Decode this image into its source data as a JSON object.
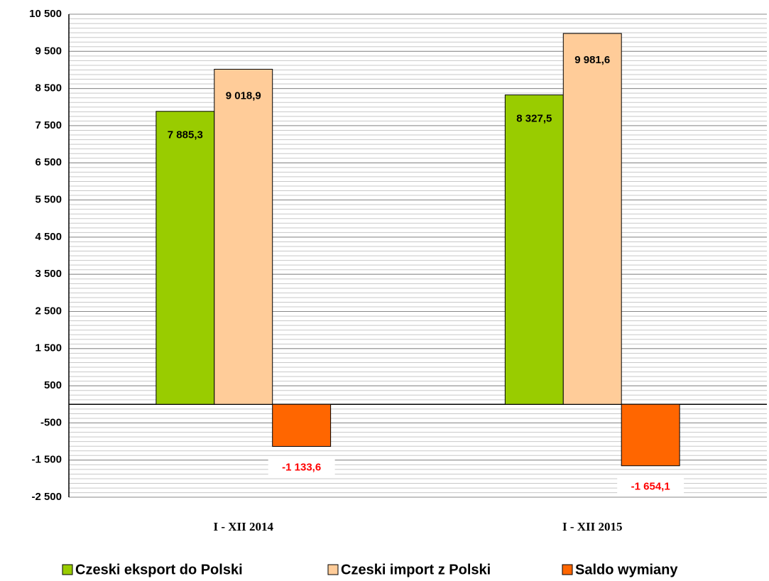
{
  "chart_data": {
    "type": "bar",
    "categories": [
      "I - XII 2014",
      "I - XII 2015"
    ],
    "series": [
      {
        "name": "Czeski eksport do Polski",
        "color": "#99cc00",
        "values": [
          7885.3,
          8327.5
        ],
        "value_labels": [
          "7 885,3",
          "8 327,5"
        ]
      },
      {
        "name": "Czeski import z Polski",
        "color": "#ffcc99",
        "values": [
          9018.9,
          9981.6
        ],
        "value_labels": [
          "9 018,9",
          "9 981,6"
        ]
      },
      {
        "name": "Saldo wymiany",
        "color": "#ff6600",
        "values": [
          -1133.6,
          -1654.1
        ],
        "value_labels": [
          "-1 133,6",
          "-1 654,1"
        ]
      }
    ],
    "ylim": [
      -2500,
      10500
    ],
    "yticks": [
      {
        "value": -2500,
        "label": "-2 500"
      },
      {
        "value": -1500,
        "label": "-1 500"
      },
      -500,
      500,
      {
        "value": 1500,
        "label": "1 500"
      },
      {
        "value": 2500,
        "label": "2 500"
      },
      {
        "value": 3500,
        "label": "3 500"
      },
      {
        "value": 4500,
        "label": "4 500"
      },
      {
        "value": 5500,
        "label": "5 500"
      },
      {
        "value": 6500,
        "label": "6 500"
      },
      {
        "value": 7500,
        "label": "7 500"
      },
      {
        "value": 8500,
        "label": "8 500"
      },
      {
        "value": 9500,
        "label": "9 500"
      },
      {
        "value": 10500,
        "label": "10 500"
      }
    ],
    "grid": true,
    "legend": "bottom"
  }
}
